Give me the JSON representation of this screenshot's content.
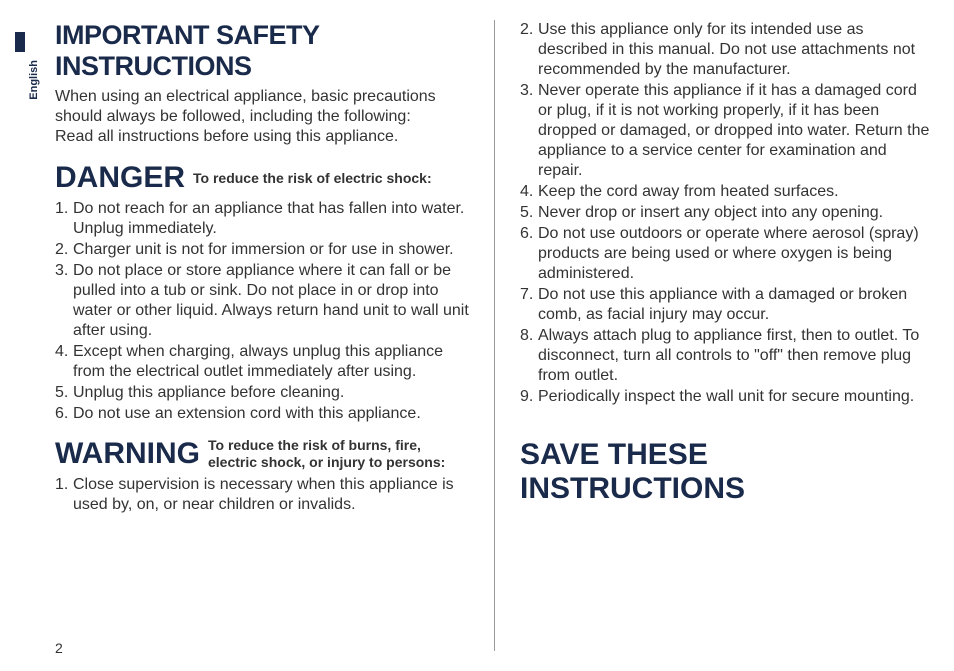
{
  "language_label": "English",
  "page_number": "2",
  "left_column": {
    "heading": "IMPORTANT SAFETY INSTRUCTIONS",
    "intro_line1": "When using an electrical appliance, basic precautions should always be followed, including the following:",
    "intro_line2": "Read all instructions before using this appliance.",
    "danger_label": "DANGER",
    "danger_sub": "To reduce the risk of electric shock:",
    "danger_items": [
      "Do not reach for an appliance that has fallen into water. Unplug immediately.",
      "Charger unit is not for immersion or for use in shower.",
      "Do not place or store appliance where it can fall or be pulled into a tub or sink. Do not place in or drop into water or other liquid. Always return hand unit to wall unit after using.",
      "Except when charging, always unplug this appliance from the electrical outlet immediately after using.",
      "Unplug this appliance before cleaning.",
      "Do not use an extension cord with this appliance."
    ],
    "warning_label": "WARNING",
    "warning_sub": "To reduce the risk of burns, fire, electric shock, or injury to persons:",
    "warning_items_left": [
      "Close supervision is necessary when this appliance is used by, on, or near children or invalids."
    ]
  },
  "right_column": {
    "warning_items_right": [
      "Use this appliance only for its intended use as described in this manual. Do not use attachments not recommended by the manufacturer.",
      "Never operate this appliance if it has a damaged cord or plug, if it is not working properly, if it has been dropped or damaged, or dropped into water. Return the appliance to a service center for examination and repair.",
      "Keep the cord away from heated surfaces.",
      "Never drop or insert any object into any opening.",
      "Do not use outdoors or operate where aerosol (spray) products are being used or where oxygen is being administered.",
      "Do not use this appliance with a damaged or broken comb, as facial injury may occur.",
      "Always attach plug to appliance first, then to outlet. To disconnect, turn all controls to \"off\" then remove plug from outlet.",
      "Periodically inspect the wall unit for secure mounting."
    ],
    "save_heading": "SAVE THESE INSTRUCTIONS"
  },
  "colors": {
    "heading": "#1a2a4a",
    "body": "#333333",
    "background": "#ffffff",
    "divider": "#999999"
  },
  "typography": {
    "heading_size_pt": 27,
    "big_label_size_pt": 30,
    "body_size_pt": 16,
    "sub_label_size_pt": 14
  }
}
